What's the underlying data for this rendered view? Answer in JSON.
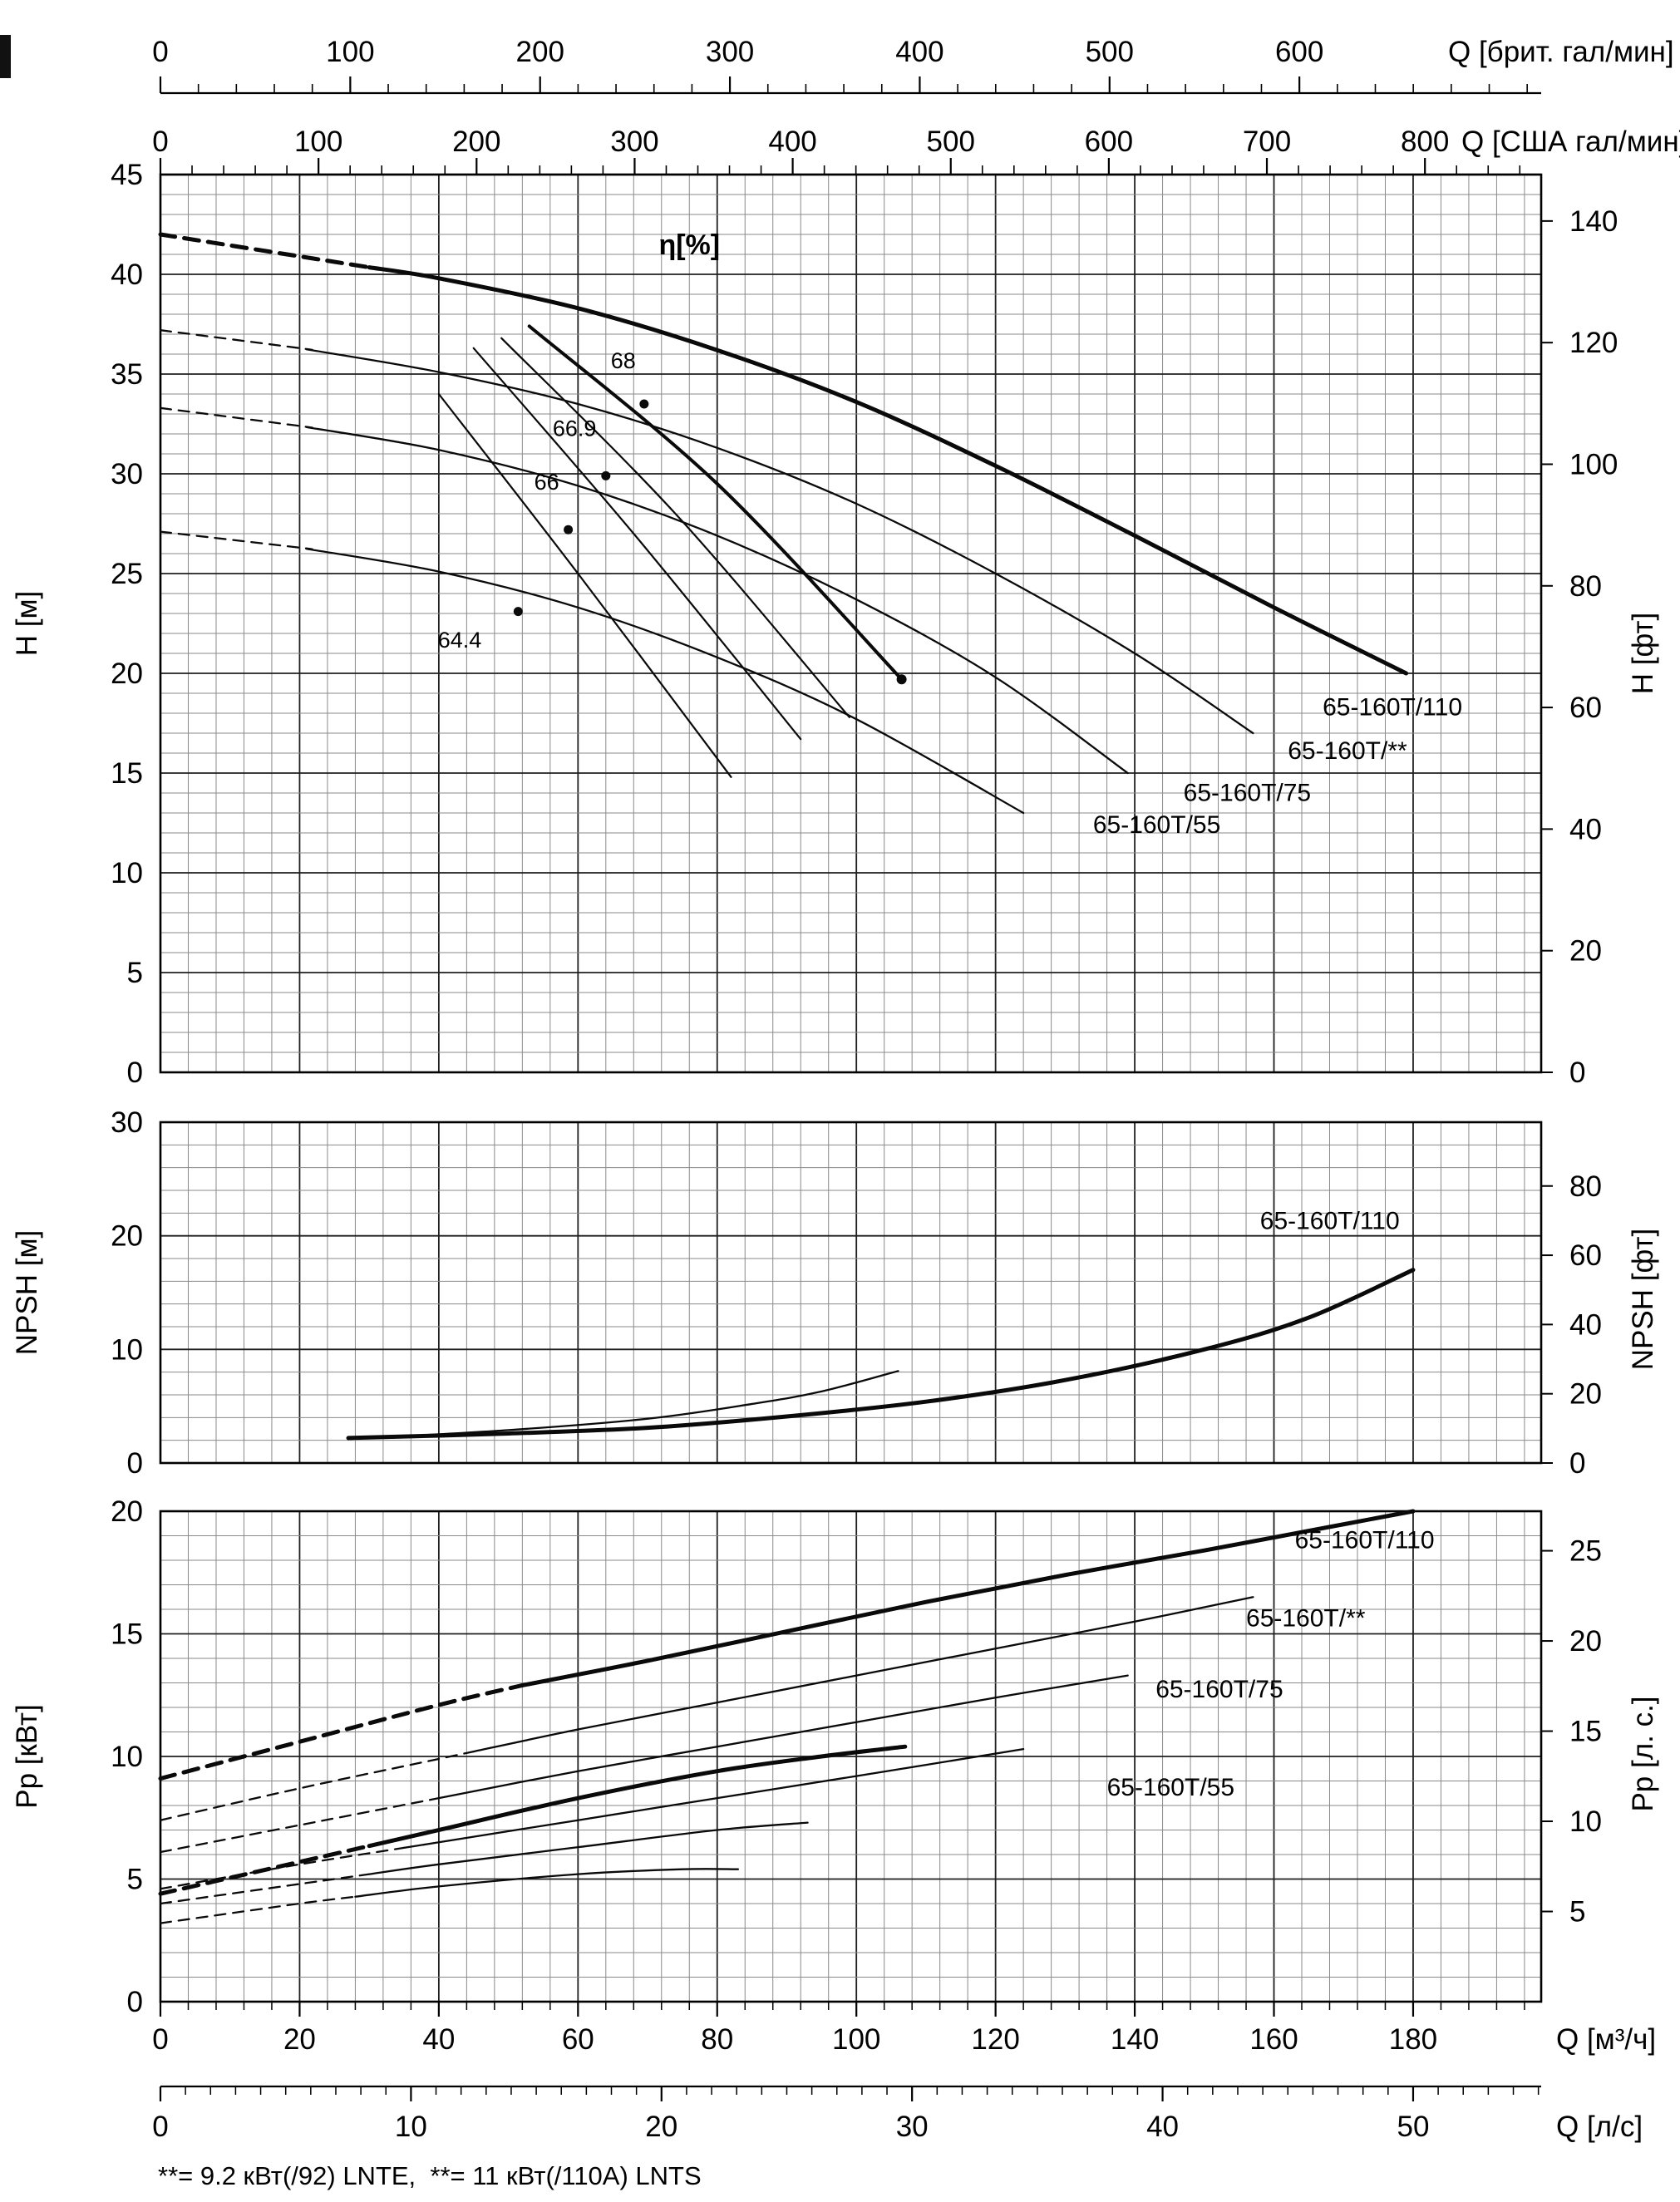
{
  "figure": {
    "background": "#ffffff"
  },
  "colors": {
    "curve": "#0a0a0a",
    "grid_minor": "#8a8a8a",
    "grid_major": "#1f1f1f",
    "border": "#000000"
  },
  "axes_top": {
    "imp_gpm": {
      "label": "Q [брит. гал/мин]",
      "ticks": [
        0,
        100,
        200,
        300,
        400,
        500,
        600
      ]
    },
    "us_gpm": {
      "label": "Q [США гал/мин]",
      "ticks": [
        0,
        100,
        200,
        300,
        400,
        500,
        600,
        700,
        800
      ]
    }
  },
  "axes_bottom": {
    "m3h": {
      "label": "Q [м³/ч]",
      "ticks": [
        0,
        20,
        40,
        60,
        80,
        100,
        120,
        140,
        160,
        180
      ]
    },
    "ls": {
      "label": "Q [л/с]",
      "ticks": [
        0,
        10,
        20,
        30,
        40,
        50
      ]
    }
  },
  "footnote": "**= 9.2 кВт(/92) LNTE,  **= 11 кВт(/110A) LNTS",
  "chart_data": [
    {
      "type": "line",
      "name": "head-flow-chart",
      "ylabel_left": "H [м]",
      "ylabel_right": "H [фт]",
      "xlabel": "Q [м³/ч]",
      "xlim": [
        0,
        198.4
      ],
      "ylim": [
        0,
        45
      ],
      "y_minor": 1,
      "y_ticks_left": [
        0,
        5,
        10,
        15,
        20,
        25,
        30,
        35,
        40,
        45
      ],
      "y_ticks_right": [
        0,
        20,
        40,
        60,
        80,
        100,
        120,
        140
      ],
      "right_unit": "ft",
      "eta_title": "η[%]",
      "eta_title_pos": [
        76,
        41
      ],
      "series": [
        {
          "name": "65-160T/110",
          "thick": true,
          "dash_until": 30,
          "points": [
            [
              0,
              42
            ],
            [
              20,
              40.9
            ],
            [
              40,
              39.8
            ],
            [
              60,
              38.3
            ],
            [
              80,
              36.2
            ],
            [
              100,
              33.6
            ],
            [
              120,
              30.4
            ],
            [
              140,
              26.9
            ],
            [
              160,
              23.3
            ],
            [
              179,
              20
            ]
          ],
          "label": "65-160T/110",
          "label_pos": [
            167,
            17.9
          ]
        },
        {
          "name": "65-160T/**",
          "dash_until": 21,
          "points": [
            [
              0,
              37.2
            ],
            [
              20,
              36.3
            ],
            [
              40,
              35.1
            ],
            [
              60,
              33.5
            ],
            [
              80,
              31.3
            ],
            [
              100,
              28.5
            ],
            [
              120,
              25.0
            ],
            [
              140,
              21.0
            ],
            [
              157,
              17.0
            ]
          ],
          "label": "65-160T/**",
          "label_pos": [
            162,
            15.7
          ]
        },
        {
          "name": "65-160T/75",
          "dash_until": 21,
          "points": [
            [
              0,
              33.3
            ],
            [
              20,
              32.4
            ],
            [
              40,
              31.2
            ],
            [
              60,
              29.4
            ],
            [
              80,
              26.9
            ],
            [
              100,
              23.7
            ],
            [
              120,
              19.8
            ],
            [
              139,
              15.0
            ]
          ],
          "label": "65-160T/75",
          "label_pos": [
            147,
            13.6
          ]
        },
        {
          "name": "65-160T/55",
          "dash_until": 21,
          "points": [
            [
              0,
              27.1
            ],
            [
              20,
              26.3
            ],
            [
              40,
              25.1
            ],
            [
              60,
              23.3
            ],
            [
              80,
              20.8
            ],
            [
              100,
              17.7
            ],
            [
              124,
              13.0
            ]
          ],
          "label": "65-160T/55",
          "label_pos": [
            134,
            12.0
          ]
        }
      ],
      "iso_efficiency_lines": [
        {
          "points": [
            [
              40,
              34.0
            ],
            [
              60,
              25.0
            ],
            [
              82,
              14.8
            ]
          ]
        },
        {
          "points": [
            [
              45,
              36.3
            ],
            [
              68,
              27.0
            ],
            [
              92,
              16.7
            ]
          ]
        },
        {
          "points": [
            [
              49,
              36.8
            ],
            [
              74,
              28.0
            ],
            [
              99,
              17.8
            ]
          ]
        },
        {
          "points": [
            [
              53,
              37.4
            ],
            [
              80,
              29.5
            ],
            [
              106.5,
              19.7
            ]
          ],
          "thick": true,
          "end_dot": true
        }
      ],
      "efficiency_points": [
        {
          "value": "68",
          "dot": [
            69.5,
            33.5
          ],
          "label_pos": [
            66.5,
            35.3
          ]
        },
        {
          "value": "66.9",
          "dot": [
            64.0,
            29.9
          ],
          "label_pos": [
            59.5,
            31.9
          ]
        },
        {
          "value": "66",
          "dot": [
            58.6,
            27.2
          ],
          "label_pos": [
            55.5,
            29.2
          ]
        },
        {
          "value": "64.4",
          "dot": [
            51.4,
            23.1
          ],
          "label_pos": [
            43.0,
            21.3
          ]
        }
      ]
    },
    {
      "type": "line",
      "name": "npsh-flow-chart",
      "ylabel_left": "NPSH [м]",
      "ylabel_right": "NPSH [фт]",
      "xlabel": "Q [м³/ч]",
      "xlim": [
        0,
        198.4
      ],
      "ylim": [
        0,
        30
      ],
      "y_minor": 2,
      "y_ticks_left": [
        0,
        10,
        20,
        30
      ],
      "y_ticks_right": [
        0,
        20,
        40,
        60,
        80
      ],
      "right_unit": "ft",
      "series": [
        {
          "name": "65-160T/110",
          "thick": true,
          "points": [
            [
              27,
              2.2
            ],
            [
              50,
              2.6
            ],
            [
              70,
              3.1
            ],
            [
              90,
              4.1
            ],
            [
              110,
              5.4
            ],
            [
              130,
              7.3
            ],
            [
              150,
              10.0
            ],
            [
              165,
              12.8
            ],
            [
              180,
              17.0
            ]
          ],
          "label": "65-160T/110",
          "label_pos": [
            158,
            20.6
          ]
        },
        {
          "name": "second-variant",
          "points": [
            [
              27,
              2.1
            ],
            [
              50,
              2.9
            ],
            [
              70,
              3.9
            ],
            [
              85,
              5.2
            ],
            [
              95,
              6.3
            ],
            [
              106,
              8.1
            ]
          ]
        }
      ]
    },
    {
      "type": "line",
      "name": "power-flow-chart",
      "ylabel_left": "Pp [кВт]",
      "ylabel_right": "Pp [л. с.]",
      "xlabel": "Q [м³/ч]",
      "xlim": [
        0,
        198.4
      ],
      "ylim": [
        0,
        20
      ],
      "y_minor": 1,
      "y_ticks_left": [
        0,
        5,
        10,
        15,
        20
      ],
      "y_ticks_right": [
        5,
        10,
        15,
        20,
        25
      ],
      "right_unit": "hp",
      "series": [
        {
          "name": "65-160T/110",
          "thick": true,
          "dash_until": 52,
          "points": [
            [
              0,
              9.1
            ],
            [
              20,
              10.6
            ],
            [
              40,
              12.1
            ],
            [
              52,
              12.9
            ],
            [
              70,
              13.9
            ],
            [
              90,
              15.1
            ],
            [
              110,
              16.3
            ],
            [
              130,
              17.4
            ],
            [
              150,
              18.4
            ],
            [
              165,
              19.2
            ],
            [
              180,
              20.0
            ]
          ],
          "label": "65-160T/110",
          "label_pos": [
            163,
            18.5
          ]
        },
        {
          "name": "65-160T/**",
          "dash_until": 45,
          "points": [
            [
              0,
              7.4
            ],
            [
              20,
              8.7
            ],
            [
              40,
              9.9
            ],
            [
              60,
              11.1
            ],
            [
              80,
              12.2
            ],
            [
              100,
              13.3
            ],
            [
              120,
              14.4
            ],
            [
              140,
              15.5
            ],
            [
              157,
              16.5
            ]
          ],
          "label": "65-160T/**",
          "label_pos": [
            156,
            15.3
          ]
        },
        {
          "name": "65-160T/75",
          "dash_until": 40,
          "points": [
            [
              0,
              6.1
            ],
            [
              20,
              7.2
            ],
            [
              40,
              8.3
            ],
            [
              60,
              9.4
            ],
            [
              80,
              10.4
            ],
            [
              100,
              11.4
            ],
            [
              120,
              12.4
            ],
            [
              139,
              13.3
            ]
          ],
          "label": "65-160T/75",
          "label_pos": [
            143,
            12.4
          ]
        },
        {
          "name": "65-160T/55",
          "dash_until": 35,
          "points": [
            [
              0,
              4.6
            ],
            [
              20,
              5.6
            ],
            [
              40,
              6.5
            ],
            [
              60,
              7.4
            ],
            [
              80,
              8.3
            ],
            [
              100,
              9.2
            ],
            [
              124,
              10.3
            ]
          ],
          "label": "65-160T/55",
          "label_pos": [
            136,
            8.4
          ]
        },
        {
          "name": "variant-a",
          "thick": true,
          "dash_until": 30,
          "points": [
            [
              0,
              4.4
            ],
            [
              20,
              5.7
            ],
            [
              40,
              7.0
            ],
            [
              60,
              8.3
            ],
            [
              80,
              9.4
            ],
            [
              95,
              10.0
            ],
            [
              107,
              10.4
            ]
          ]
        },
        {
          "name": "variant-b",
          "dash_until": 30,
          "points": [
            [
              0,
              4.0
            ],
            [
              20,
              4.8
            ],
            [
              40,
              5.6
            ],
            [
              60,
              6.3
            ],
            [
              80,
              7.0
            ],
            [
              93,
              7.3
            ]
          ]
        },
        {
          "name": "variant-c",
          "dash_until": 28,
          "points": [
            [
              0,
              3.2
            ],
            [
              20,
              4.0
            ],
            [
              40,
              4.7
            ],
            [
              60,
              5.2
            ],
            [
              75,
              5.4
            ],
            [
              83,
              5.4
            ]
          ]
        }
      ]
    }
  ]
}
